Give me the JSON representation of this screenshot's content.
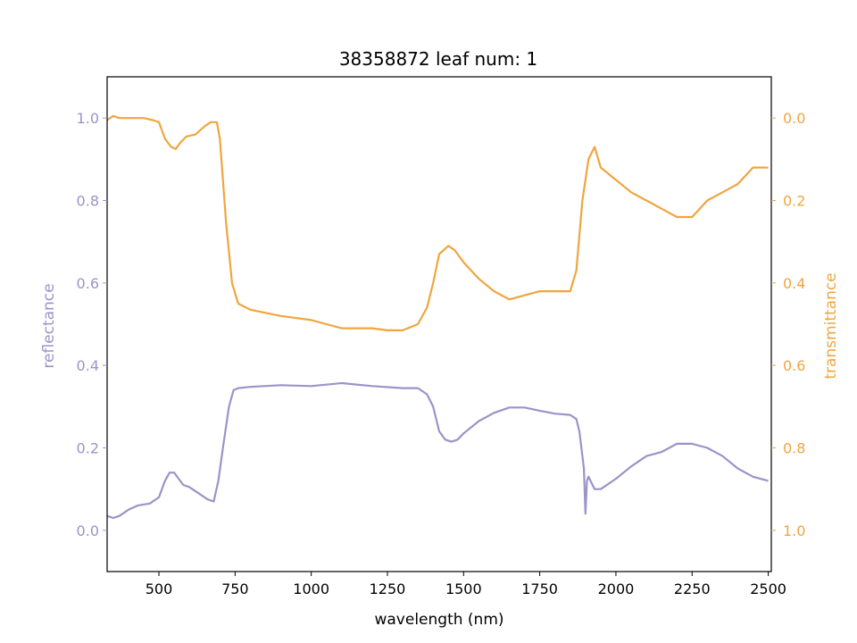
{
  "chart_data": {
    "type": "line",
    "title": "38358872 leaf num: 1",
    "xlabel": "wavelength (nm)",
    "ylabel_left": "reflectance",
    "ylabel_right": "transmittance",
    "xlim": [
      330,
      2510
    ],
    "ylim_left": [
      -0.1,
      1.1
    ],
    "ylim_right": [
      1.1,
      -0.1
    ],
    "right_axis_inverted": true,
    "grid": false,
    "x_ticks": [
      500,
      750,
      1000,
      1250,
      1500,
      1750,
      2000,
      2250,
      2500
    ],
    "x_tick_labels": [
      "500",
      "750",
      "1000",
      "1250",
      "1500",
      "1750",
      "2000",
      "2250",
      "2500"
    ],
    "y_left_ticks": [
      0.0,
      0.2,
      0.4,
      0.6,
      0.8,
      1.0
    ],
    "y_left_tick_labels": [
      "0.0",
      "0.2",
      "0.4",
      "0.6",
      "0.8",
      "1.0"
    ],
    "y_right_ticks": [
      0.0,
      0.2,
      0.4,
      0.6,
      0.8,
      1.0
    ],
    "y_right_tick_labels": [
      "0.0",
      "0.2",
      "0.4",
      "0.6",
      "0.8",
      "1.0"
    ],
    "colors": {
      "reflectance": "#9a94c8",
      "transmittance": "#f0a53f",
      "axis": "#000000"
    },
    "series": [
      {
        "axis": "left",
        "color": "#9a94c8",
        "x": [
          330,
          350,
          370,
          400,
          430,
          470,
          500,
          520,
          535,
          550,
          565,
          580,
          600,
          630,
          660,
          680,
          695,
          710,
          730,
          745,
          760,
          800,
          900,
          1000,
          1100,
          1200,
          1300,
          1350,
          1380,
          1400,
          1420,
          1440,
          1460,
          1480,
          1500,
          1550,
          1600,
          1650,
          1700,
          1750,
          1800,
          1850,
          1870,
          1880,
          1895,
          1900,
          1905,
          1910,
          1930,
          1950,
          2000,
          2050,
          2100,
          2150,
          2200,
          2250,
          2300,
          2350,
          2400,
          2450,
          2500
        ],
        "y": [
          0.035,
          0.03,
          0.035,
          0.05,
          0.06,
          0.065,
          0.08,
          0.12,
          0.14,
          0.14,
          0.125,
          0.11,
          0.105,
          0.09,
          0.075,
          0.07,
          0.12,
          0.2,
          0.3,
          0.34,
          0.345,
          0.348,
          0.352,
          0.35,
          0.357,
          0.35,
          0.345,
          0.345,
          0.33,
          0.3,
          0.24,
          0.22,
          0.215,
          0.22,
          0.235,
          0.265,
          0.285,
          0.298,
          0.298,
          0.29,
          0.283,
          0.28,
          0.27,
          0.24,
          0.15,
          0.04,
          0.12,
          0.13,
          0.1,
          0.1,
          0.125,
          0.155,
          0.18,
          0.19,
          0.21,
          0.21,
          0.2,
          0.18,
          0.15,
          0.13,
          0.12
        ]
      },
      {
        "axis": "right",
        "color": "#f0a53f",
        "x": [
          330,
          350,
          370,
          400,
          450,
          480,
          500,
          520,
          540,
          555,
          570,
          590,
          620,
          650,
          670,
          690,
          700,
          710,
          720,
          740,
          760,
          800,
          900,
          1000,
          1050,
          1100,
          1200,
          1250,
          1300,
          1350,
          1380,
          1400,
          1420,
          1450,
          1470,
          1500,
          1550,
          1600,
          1650,
          1700,
          1750,
          1800,
          1850,
          1870,
          1890,
          1910,
          1930,
          1950,
          2000,
          2050,
          2100,
          2150,
          2200,
          2250,
          2300,
          2350,
          2400,
          2450,
          2500
        ],
        "y": [
          0.005,
          -0.005,
          0.0,
          0.0,
          0.0,
          0.005,
          0.01,
          0.05,
          0.07,
          0.075,
          0.06,
          0.045,
          0.04,
          0.02,
          0.01,
          0.01,
          0.05,
          0.15,
          0.25,
          0.4,
          0.45,
          0.465,
          0.48,
          0.49,
          0.5,
          0.51,
          0.51,
          0.515,
          0.515,
          0.5,
          0.46,
          0.4,
          0.33,
          0.31,
          0.32,
          0.35,
          0.39,
          0.42,
          0.44,
          0.43,
          0.42,
          0.42,
          0.42,
          0.37,
          0.2,
          0.1,
          0.07,
          0.12,
          0.15,
          0.18,
          0.2,
          0.22,
          0.24,
          0.24,
          0.2,
          0.18,
          0.16,
          0.12,
          0.12
        ]
      }
    ]
  }
}
